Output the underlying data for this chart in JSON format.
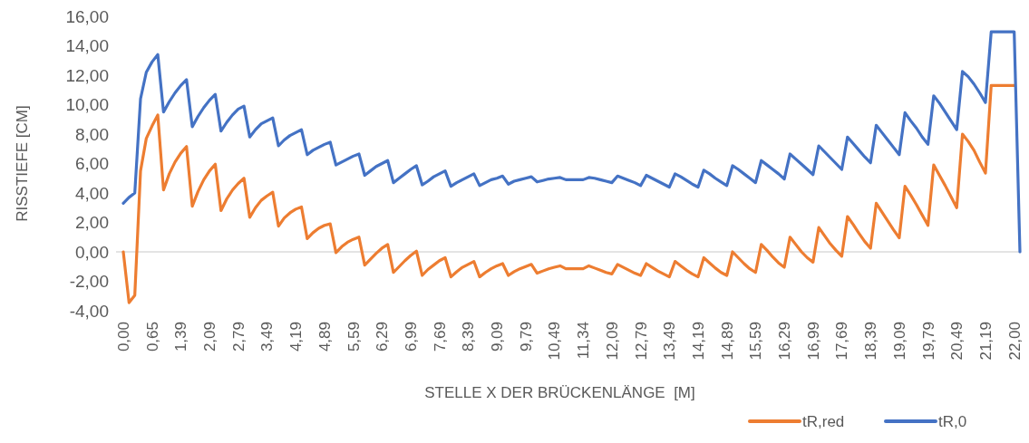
{
  "chart_data": {
    "type": "line",
    "xlabel": "STELLE X DER BRÜCKENLÄNGE  [M]",
    "ylabel": "RISSTIEFE [CM]",
    "categories": [
      "0,00",
      null,
      null,
      null,
      null,
      "0,65",
      null,
      null,
      null,
      null,
      "1,39",
      null,
      null,
      null,
      null,
      "2,09",
      null,
      null,
      null,
      null,
      "2,79",
      null,
      null,
      null,
      null,
      "3,49",
      null,
      null,
      null,
      null,
      "4,19",
      null,
      null,
      null,
      null,
      "4,89",
      null,
      null,
      null,
      null,
      "5,59",
      null,
      null,
      null,
      null,
      "6,29",
      null,
      null,
      null,
      null,
      "6,99",
      null,
      null,
      null,
      null,
      "7,69",
      null,
      null,
      null,
      null,
      "8,39",
      null,
      null,
      null,
      null,
      "9,09",
      null,
      null,
      null,
      null,
      "9,79",
      null,
      null,
      null,
      null,
      "10,49",
      null,
      null,
      null,
      null,
      "11,34",
      null,
      null,
      null,
      null,
      "12,09",
      null,
      null,
      null,
      null,
      "12,79",
      null,
      null,
      null,
      null,
      "13,49",
      null,
      null,
      null,
      null,
      "14,19",
      null,
      null,
      null,
      null,
      "14,89",
      null,
      null,
      null,
      null,
      "15,59",
      null,
      null,
      null,
      null,
      "16,29",
      null,
      null,
      null,
      null,
      "16,99",
      null,
      null,
      null,
      null,
      "17,69",
      null,
      null,
      null,
      null,
      "18,39",
      null,
      null,
      null,
      null,
      "19,09",
      null,
      null,
      null,
      null,
      "19,79",
      null,
      null,
      null,
      null,
      "20,49",
      null,
      null,
      null,
      null,
      "21,19",
      null,
      null,
      null,
      null,
      "22,00",
      null
    ],
    "series": [
      {
        "name": "tR,red",
        "color": "#ed7d31",
        "values": [
          0.0,
          -3.45,
          -2.95,
          5.5,
          7.7,
          8.55,
          9.3,
          4.2,
          5.3,
          6.1,
          6.7,
          7.15,
          3.1,
          4.1,
          4.9,
          5.5,
          5.95,
          2.8,
          3.6,
          4.2,
          4.65,
          5.0,
          2.35,
          3.0,
          3.5,
          3.8,
          4.05,
          1.75,
          2.3,
          2.65,
          2.9,
          3.05,
          0.9,
          1.3,
          1.6,
          1.8,
          1.9,
          -0.05,
          0.35,
          0.65,
          0.85,
          1.0,
          -0.9,
          -0.5,
          -0.1,
          0.25,
          0.5,
          -1.4,
          -1.0,
          -0.6,
          -0.25,
          0.05,
          -1.6,
          -1.2,
          -0.9,
          -0.6,
          -0.4,
          -1.7,
          -1.35,
          -1.05,
          -0.85,
          -0.65,
          -1.7,
          -1.4,
          -1.15,
          -0.95,
          -0.8,
          -1.6,
          -1.35,
          -1.15,
          -1.0,
          -0.85,
          -1.45,
          -1.3,
          -1.15,
          -1.05,
          -0.95,
          -1.15,
          -1.15,
          -1.15,
          -1.15,
          -0.95,
          -1.1,
          -1.25,
          -1.4,
          -1.5,
          -0.85,
          -1.05,
          -1.25,
          -1.45,
          -1.6,
          -0.8,
          -1.05,
          -1.3,
          -1.5,
          -1.7,
          -0.65,
          -0.95,
          -1.25,
          -1.5,
          -1.7,
          -0.4,
          -0.75,
          -1.1,
          -1.4,
          -1.6,
          0.0,
          -0.4,
          -0.8,
          -1.15,
          -1.4,
          0.5,
          0.1,
          -0.35,
          -0.75,
          -1.05,
          1.0,
          0.5,
          0.0,
          -0.4,
          -0.7,
          1.65,
          1.1,
          0.55,
          0.1,
          -0.3,
          2.4,
          1.85,
          1.25,
          0.7,
          0.25,
          3.3,
          2.7,
          2.1,
          1.5,
          0.95,
          4.45,
          3.85,
          3.2,
          2.5,
          1.8,
          5.9,
          5.2,
          4.5,
          3.75,
          3.0,
          8.0,
          7.5,
          6.9,
          6.1,
          5.35,
          11.3,
          11.3,
          11.3,
          11.3,
          11.3,
          null
        ]
      },
      {
        "name": "tR,0",
        "color": "#4472c4",
        "values": [
          3.3,
          3.7,
          4.0,
          10.4,
          12.2,
          12.9,
          13.4,
          9.5,
          10.2,
          10.8,
          11.3,
          11.7,
          8.5,
          9.2,
          9.8,
          10.3,
          10.7,
          8.2,
          8.8,
          9.3,
          9.7,
          9.9,
          7.8,
          8.3,
          8.7,
          8.9,
          9.1,
          7.2,
          7.6,
          7.9,
          8.1,
          8.3,
          6.6,
          6.9,
          7.1,
          7.3,
          7.45,
          5.9,
          6.1,
          6.3,
          6.5,
          6.65,
          5.2,
          5.5,
          5.8,
          6.0,
          6.2,
          4.7,
          5.0,
          5.3,
          5.6,
          5.85,
          4.55,
          4.8,
          5.1,
          5.3,
          5.5,
          4.45,
          4.7,
          4.9,
          5.1,
          5.3,
          4.5,
          4.7,
          4.9,
          5.0,
          5.15,
          4.6,
          4.8,
          4.9,
          5.0,
          5.1,
          4.75,
          4.85,
          4.95,
          5.0,
          5.05,
          4.9,
          4.9,
          4.9,
          4.9,
          5.05,
          5.0,
          4.9,
          4.8,
          4.7,
          5.15,
          5.0,
          4.85,
          4.7,
          4.5,
          5.2,
          5.0,
          4.8,
          4.6,
          4.4,
          5.3,
          5.1,
          4.85,
          4.6,
          4.4,
          5.55,
          5.3,
          5.0,
          4.75,
          4.5,
          5.85,
          5.6,
          5.3,
          5.0,
          4.7,
          6.2,
          5.9,
          5.6,
          5.3,
          4.95,
          6.65,
          6.3,
          5.95,
          5.6,
          5.25,
          7.2,
          6.8,
          6.4,
          6.0,
          5.6,
          7.8,
          7.35,
          6.9,
          6.45,
          6.05,
          8.6,
          8.1,
          7.6,
          7.1,
          6.6,
          9.45,
          8.9,
          8.4,
          7.8,
          7.3,
          10.6,
          10.1,
          9.5,
          8.9,
          8.3,
          12.25,
          11.9,
          11.4,
          10.8,
          10.15,
          14.95,
          14.95,
          14.95,
          14.95,
          14.95,
          0.0
        ]
      }
    ],
    "ylim": [
      -4,
      16
    ],
    "yticks": [
      {
        "value": -4,
        "label": "-4,00"
      },
      {
        "value": -2,
        "label": "-2,00"
      },
      {
        "value": 0,
        "label": "0,00"
      },
      {
        "value": 2,
        "label": "2,00"
      },
      {
        "value": 4,
        "label": "4,00"
      },
      {
        "value": 6,
        "label": "6,00"
      },
      {
        "value": 8,
        "label": "8,00"
      },
      {
        "value": 10,
        "label": "10,00"
      },
      {
        "value": 12,
        "label": "12,00"
      },
      {
        "value": 14,
        "label": "14,00"
      },
      {
        "value": 16,
        "label": "16,00"
      }
    ],
    "legend": "bottom right",
    "marker": "none",
    "line_style": "solid"
  }
}
